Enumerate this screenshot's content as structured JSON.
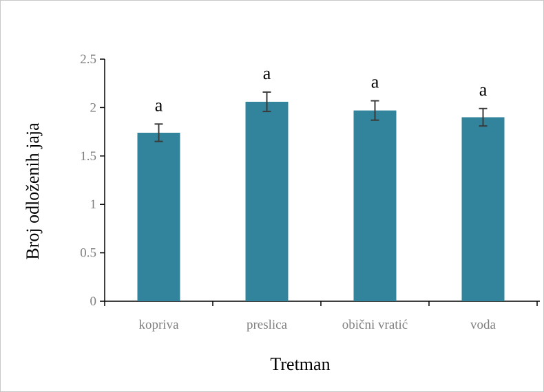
{
  "chart_data": {
    "type": "bar",
    "title": "",
    "xlabel": "Tretman",
    "ylabel": "Broj odloženih jaja",
    "ylim": [
      0,
      2.5
    ],
    "yticks": [
      0,
      0.5,
      1,
      1.5,
      2,
      2.5
    ],
    "ytick_labels": [
      "0",
      "0.5",
      "1",
      "1.5",
      "2",
      "2.5"
    ],
    "categories": [
      "kopriva",
      "preslica",
      "obični vratić",
      "voda"
    ],
    "values": [
      1.74,
      2.06,
      1.97,
      1.9
    ],
    "errors": [
      0.09,
      0.1,
      0.1,
      0.09
    ],
    "significance_labels": [
      "a",
      "a",
      "a",
      "a"
    ],
    "bar_color": "#31849b",
    "error_bar_color": "#3a3a3a",
    "grid": false,
    "legend": "none"
  }
}
